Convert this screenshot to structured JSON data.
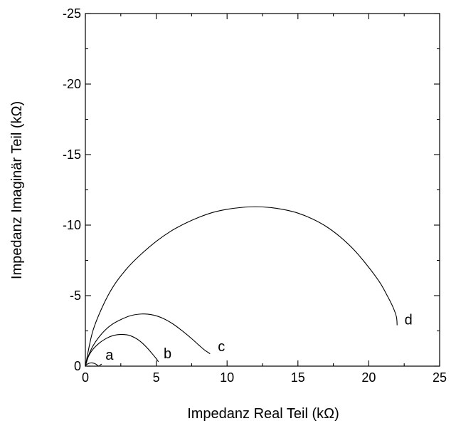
{
  "chart_data": {
    "type": "line",
    "title": "",
    "xlabel": "Impedanz Real Teil (kΩ)",
    "ylabel": "Impedanz Imaginär Teil (kΩ)",
    "xlim": [
      0,
      25
    ],
    "ylim": [
      0,
      -25
    ],
    "y_axis_inverted": true,
    "grid": false,
    "x_ticks": [
      {
        "value": 0,
        "label": "0"
      },
      {
        "value": 5,
        "label": "5"
      },
      {
        "value": 10,
        "label": "10"
      },
      {
        "value": 15,
        "label": "15"
      },
      {
        "value": 20,
        "label": "20"
      },
      {
        "value": 25,
        "label": "25"
      }
    ],
    "y_ticks": [
      {
        "value": 0,
        "label": "0"
      },
      {
        "value": -5,
        "label": "-5"
      },
      {
        "value": -10,
        "label": "-10"
      },
      {
        "value": -15,
        "label": "-15"
      },
      {
        "value": -20,
        "label": "-20"
      },
      {
        "value": -25,
        "label": "-25"
      }
    ],
    "series": [
      {
        "name": "a",
        "x": [
          0.0,
          0.1,
          0.25,
          0.45,
          0.65,
          0.8,
          0.95,
          1.05,
          1.15
        ],
        "y": [
          0.0,
          -0.12,
          -0.2,
          -0.23,
          -0.19,
          -0.1,
          0.0,
          -0.08,
          -0.15
        ]
      },
      {
        "name": "b",
        "x": [
          0.0,
          0.2,
          0.5,
          1.0,
          1.5,
          2.0,
          2.55,
          3.1,
          3.6,
          4.0,
          4.4,
          4.7,
          4.95,
          5.1,
          5.15
        ],
        "y": [
          0.0,
          -0.65,
          -1.15,
          -1.65,
          -1.98,
          -2.18,
          -2.25,
          -2.18,
          -1.95,
          -1.65,
          -1.25,
          -0.9,
          -0.6,
          -0.4,
          -0.3
        ]
      },
      {
        "name": "c",
        "x": [
          0.0,
          0.3,
          0.7,
          1.2,
          1.8,
          2.5,
          3.2,
          4.0,
          4.8,
          5.5,
          6.2,
          6.9,
          7.5,
          8.0,
          8.4,
          8.8
        ],
        "y": [
          0.0,
          -0.95,
          -1.7,
          -2.35,
          -2.9,
          -3.3,
          -3.58,
          -3.7,
          -3.62,
          -3.38,
          -2.98,
          -2.45,
          -1.95,
          -1.5,
          -1.15,
          -0.88
        ]
      },
      {
        "name": "d",
        "x": [
          0.0,
          0.5,
          1.2,
          2.0,
          3.0,
          4.0,
          5.0,
          6.0,
          7.0,
          8.0,
          9.0,
          10.0,
          11.0,
          12.0,
          13.0,
          14.0,
          15.0,
          16.0,
          17.0,
          18.0,
          19.0,
          20.0,
          20.8,
          21.3,
          21.7,
          21.95,
          22.0
        ],
        "y": [
          0.0,
          -2.4,
          -4.2,
          -5.7,
          -7.0,
          -8.0,
          -8.85,
          -9.55,
          -10.1,
          -10.55,
          -10.9,
          -11.12,
          -11.25,
          -11.3,
          -11.25,
          -11.1,
          -10.85,
          -10.45,
          -9.9,
          -9.15,
          -8.2,
          -7.0,
          -5.9,
          -5.0,
          -4.2,
          -3.5,
          -2.9
        ]
      }
    ],
    "annotations": [
      {
        "text": "a",
        "x": 1.7,
        "y": -0.45
      },
      {
        "text": "b",
        "x": 5.8,
        "y": -0.55
      },
      {
        "text": "c",
        "x": 9.6,
        "y": -1.05
      },
      {
        "text": "d",
        "x": 22.8,
        "y": -2.95
      }
    ]
  }
}
